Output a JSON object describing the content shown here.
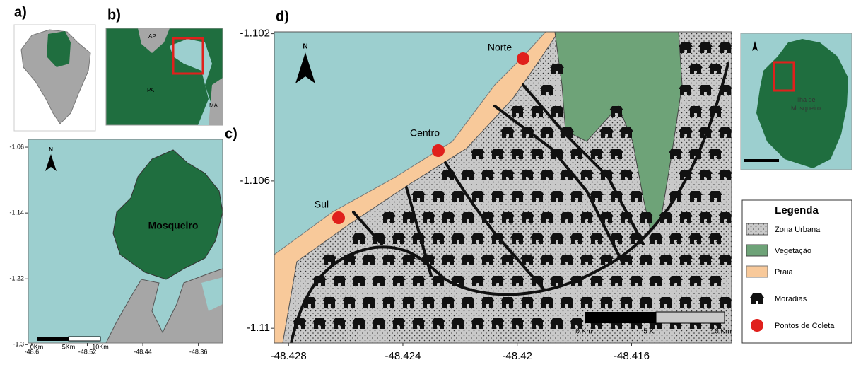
{
  "panel_labels": [
    "a)",
    "b)",
    "c)",
    "d)"
  ],
  "panel_b": {
    "labels": [
      "AP",
      "PA",
      "MA"
    ]
  },
  "panel_c": {
    "xlim": [
      -48.605,
      -48.325
    ],
    "ylim": [
      -1.298,
      -1.0505
    ],
    "xticks": [
      -48.6,
      -48.52,
      -48.44,
      -48.36
    ],
    "yticks": [
      -1.06,
      -1.14,
      -1.22,
      -1.3
    ],
    "island_label": "Mosqueiro",
    "north": "N",
    "scale_labels": [
      "0Km",
      "5Km",
      "10Km"
    ]
  },
  "panel_d": {
    "xlim": [
      -48.4285,
      -48.4125
    ],
    "ylim": [
      -1.1104,
      -1.10195
    ],
    "xticks": [
      -48.428,
      -48.424,
      -48.42,
      -48.416
    ],
    "yticks": [
      -1.102,
      -1.106,
      -1.11
    ],
    "north": "N",
    "points": [
      "Norte",
      "Centro",
      "Sul"
    ],
    "scale_labels": [
      "0 Km",
      "5 Km",
      "10 Km"
    ]
  },
  "inset": {
    "label": "Ilha de Mosqueiro"
  },
  "legend": {
    "title": "Legenda",
    "items": [
      "Zona Urbana",
      "Vegetação",
      "Praia",
      "Moradias",
      "Pontos de Coleta"
    ]
  }
}
